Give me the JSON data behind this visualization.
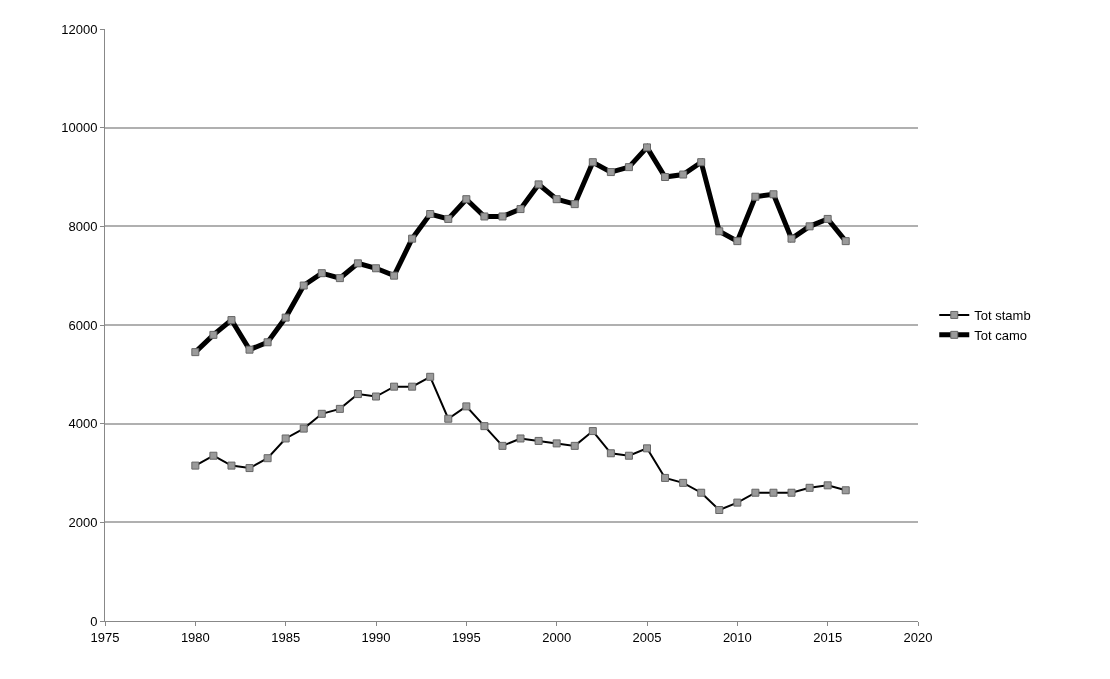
{
  "chart_data": {
    "type": "line",
    "x": [
      1980,
      1981,
      1982,
      1983,
      1984,
      1985,
      1986,
      1987,
      1988,
      1989,
      1990,
      1991,
      1992,
      1993,
      1994,
      1995,
      1996,
      1997,
      1998,
      1999,
      2000,
      2001,
      2002,
      2003,
      2004,
      2005,
      2006,
      2007,
      2008,
      2009,
      2010,
      2011,
      2012,
      2013,
      2014,
      2015,
      2016
    ],
    "series": [
      {
        "name": "Tot stamb",
        "color": "#000000",
        "values": [
          3150,
          3350,
          3150,
          3100,
          3300,
          3700,
          3900,
          4200,
          4300,
          4600,
          4550,
          4750,
          4750,
          4950,
          4100,
          4350,
          3950,
          3550,
          3700,
          3650,
          3600,
          3550,
          3850,
          3400,
          3350,
          3500,
          2900,
          2800,
          2600,
          2250,
          2400,
          2600,
          2600,
          2600,
          2700,
          2750,
          2650
        ]
      },
      {
        "name": "Tot camo",
        "color": "#000000",
        "values": [
          5450,
          5800,
          6100,
          5500,
          5650,
          6150,
          6800,
          7050,
          6950,
          7250,
          7150,
          7000,
          7750,
          8250,
          8150,
          8550,
          8200,
          8200,
          8350,
          8850,
          8550,
          8450,
          9300,
          9100,
          9200,
          9600,
          9000,
          9050,
          9300,
          7900,
          7700,
          8600,
          8650,
          7750,
          8000,
          8150,
          7700
        ]
      }
    ],
    "xlim": [
      1975,
      2020
    ],
    "xticks": [
      1975,
      1980,
      1985,
      1990,
      1995,
      2000,
      2005,
      2010,
      2015,
      2020
    ],
    "ylim": [
      0,
      12000
    ],
    "yticks": [
      0,
      2000,
      4000,
      6000,
      8000,
      10000,
      12000
    ],
    "grid": "y",
    "legend": "right",
    "marker": "square",
    "line_style": "solid"
  }
}
